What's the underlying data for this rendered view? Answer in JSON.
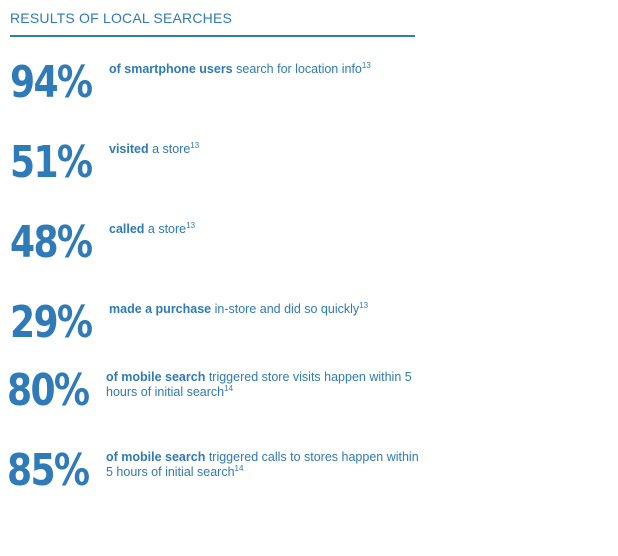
{
  "header": {
    "title": "RESULTS OF LOCAL SEARCHES"
  },
  "stats": [
    {
      "value": "94%",
      "bold": "of smartphone users",
      "rest": " search for location info",
      "ref": "13"
    },
    {
      "value": "51%",
      "bold": "visited",
      "rest": " a store",
      "ref": "13"
    },
    {
      "value": "48%",
      "bold": "called",
      "rest": " a store",
      "ref": "13"
    },
    {
      "value": "29%",
      "bold": "made a purchase",
      "rest": " in-store and did so quickly",
      "ref": "13"
    },
    {
      "value": "80%",
      "bold": "of mobile search",
      "rest": " triggered store visits happen within 5 hours of initial search",
      "ref": "14"
    },
    {
      "value": "85%",
      "bold": "of mobile search",
      "rest": " triggered calls to stores happen within 5 hours of initial search",
      "ref": "14"
    }
  ],
  "colors": {
    "accent": "#2f7ab8",
    "background": "#ffffff"
  }
}
